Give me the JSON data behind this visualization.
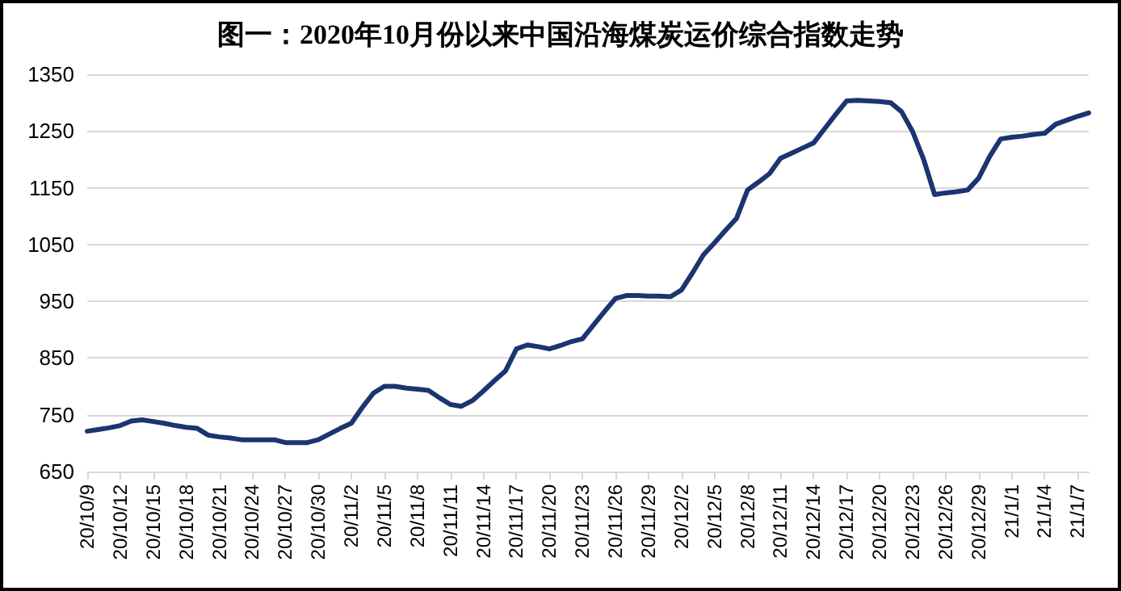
{
  "chart_data": {
    "type": "line",
    "title": "图一：2020年10月份以来中国沿海煤炭运价综合指数走势",
    "categories": [
      "20/10/9",
      null,
      null,
      "20/10/12",
      null,
      null,
      "20/10/15",
      null,
      null,
      "20/10/18",
      null,
      null,
      "20/10/21",
      null,
      null,
      "20/10/24",
      null,
      null,
      "20/10/27",
      null,
      null,
      "20/10/30",
      null,
      null,
      "20/11/2",
      null,
      null,
      "20/11/5",
      null,
      null,
      "20/11/8",
      null,
      null,
      "20/11/11",
      null,
      null,
      "20/11/14",
      null,
      null,
      "20/11/17",
      null,
      null,
      "20/11/20",
      null,
      null,
      "20/11/23",
      null,
      null,
      "20/11/26",
      null,
      null,
      "20/11/29",
      null,
      null,
      "20/12/2",
      null,
      null,
      "20/12/5",
      null,
      null,
      "20/12/8",
      null,
      null,
      "20/12/11",
      null,
      null,
      "20/12/14",
      null,
      null,
      "20/12/17",
      null,
      null,
      "20/12/20",
      null,
      null,
      "20/12/23",
      null,
      null,
      "20/12/26",
      null,
      null,
      "20/12/29",
      null,
      null,
      "21/1/1",
      null,
      null,
      "21/1/4",
      null,
      null,
      "21/1/7",
      null
    ],
    "series": [
      {
        "color": "#1b3570",
        "values": [
          721,
          724,
          727,
          731,
          739,
          741,
          738,
          735,
          731,
          728,
          726,
          714,
          711,
          709,
          706,
          706,
          706,
          706,
          701,
          701,
          701,
          706,
          716,
          726,
          735,
          763,
          788,
          800,
          800,
          797,
          795,
          793,
          780,
          768,
          765,
          775,
          792,
          810,
          827,
          866,
          873,
          870,
          866,
          872,
          879,
          884,
          908,
          932,
          955,
          960,
          960,
          959,
          959,
          958,
          970,
          1000,
          1032,
          1053,
          1075,
          1096,
          1146,
          1160,
          1175,
          1202,
          1211,
          1220,
          1229,
          1254,
          1279,
          1303,
          1304,
          1303,
          1302,
          1300,
          1284,
          1249,
          1200,
          1138,
          1141,
          1143,
          1146,
          1167,
          1205,
          1236,
          1239,
          1241,
          1244,
          1246,
          1262,
          1269,
          1276,
          1282
        ]
      }
    ],
    "ylim": [
      650,
      1350
    ],
    "yticks": [
      650,
      750,
      850,
      950,
      1050,
      1150,
      1250,
      1350
    ],
    "grid": "y",
    "marker": "none",
    "line_style": "solid"
  }
}
